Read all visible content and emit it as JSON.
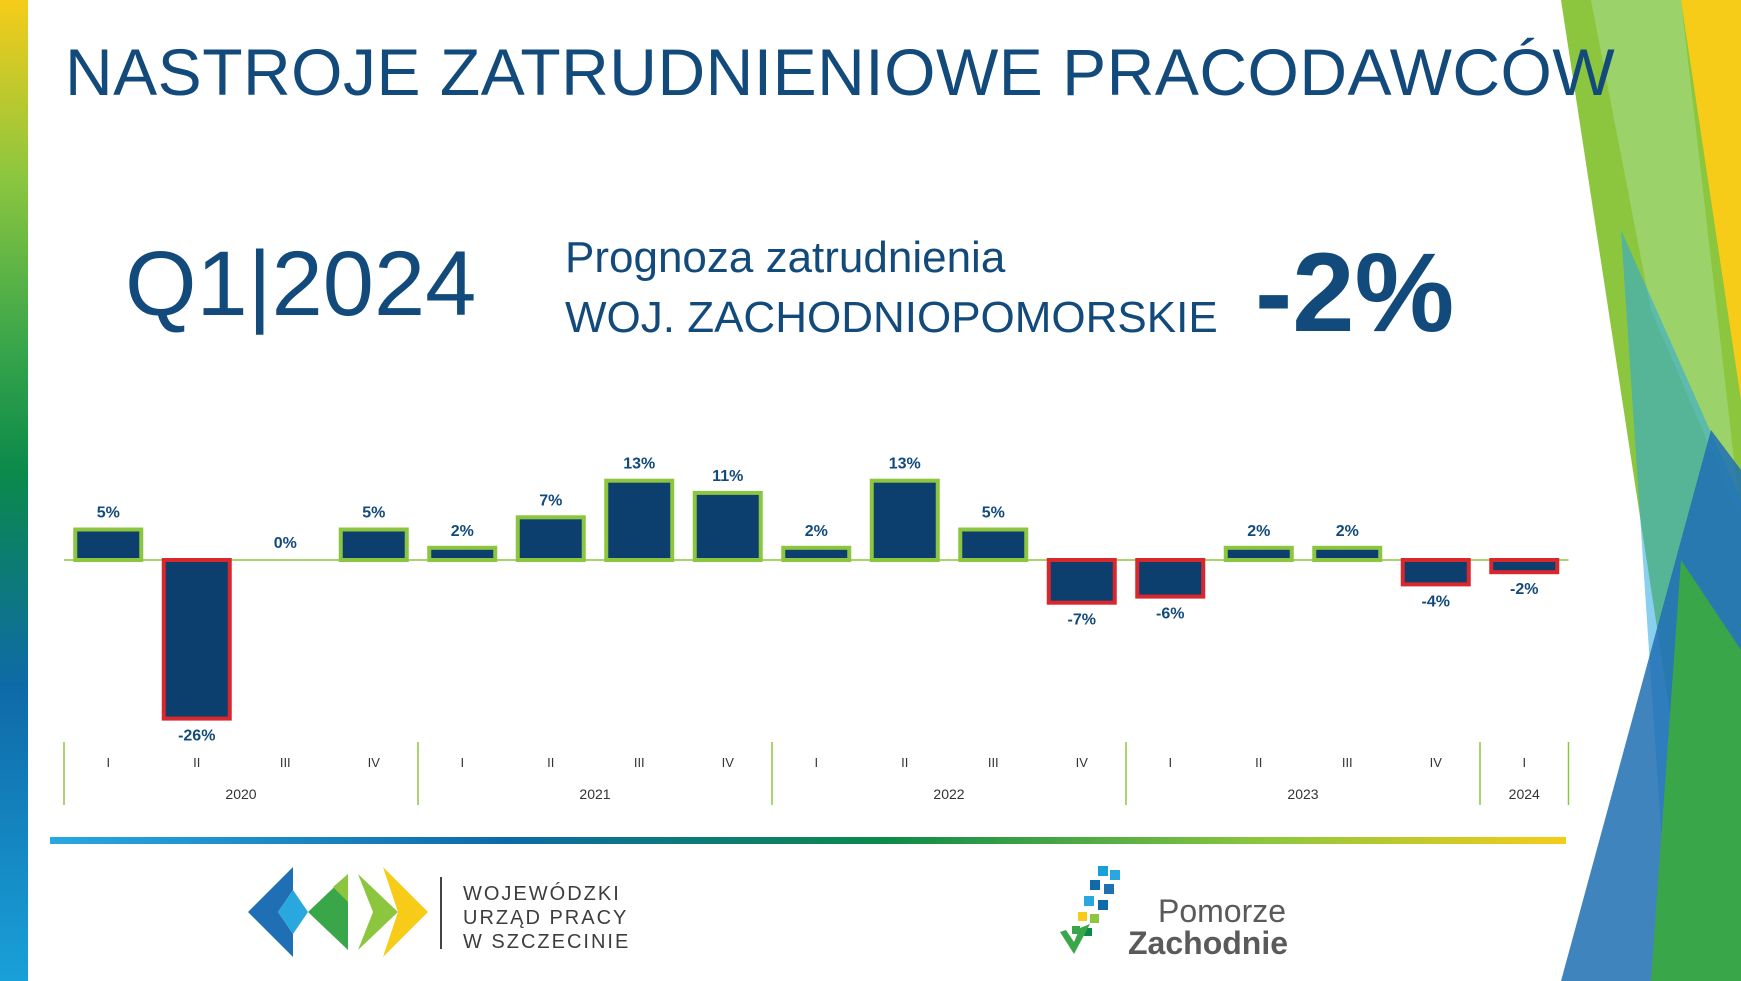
{
  "title": "NASTROJE ZATRUDNIENIOWE PRACODAWCÓW",
  "quarter_label": "Q1|2024",
  "forecast_label_line1": "Prognoza zatrudnienia",
  "forecast_label_line2": "WOJ. ZACHODNIOPOMORSKIE",
  "forecast_value": "-2%",
  "chart_data": {
    "type": "bar",
    "categories": [
      "I",
      "II",
      "III",
      "IV",
      "I",
      "II",
      "III",
      "IV",
      "I",
      "II",
      "III",
      "IV",
      "I",
      "II",
      "III",
      "IV",
      "I"
    ],
    "years": [
      {
        "label": "2020",
        "count": 4
      },
      {
        "label": "2021",
        "count": 4
      },
      {
        "label": "2022",
        "count": 4
      },
      {
        "label": "2023",
        "count": 4
      },
      {
        "label": "2024",
        "count": 1
      }
    ],
    "values": [
      5,
      -26,
      0,
      5,
      2,
      7,
      13,
      11,
      2,
      13,
      5,
      -7,
      -6,
      2,
      2,
      -4,
      -2
    ],
    "value_labels": [
      "5%",
      "-26%",
      "0%",
      "5%",
      "2%",
      "7%",
      "13%",
      "11%",
      "2%",
      "13%",
      "5%",
      "-7%",
      "-6%",
      "2%",
      "2%",
      "-4%",
      "-2%"
    ],
    "ylim": [
      -26,
      13
    ],
    "colors": {
      "fill": "#0d3f6e",
      "positive_border": "#8cc63f",
      "negative_border": "#d9272e"
    }
  },
  "logos": {
    "wup_line1": "WOJEWÓDZKI",
    "wup_line2": "URZĄD PRACY",
    "wup_line3": "W  SZCZECINIE",
    "pz_line1": "Pomorze",
    "pz_line2": "Zachodnie"
  }
}
